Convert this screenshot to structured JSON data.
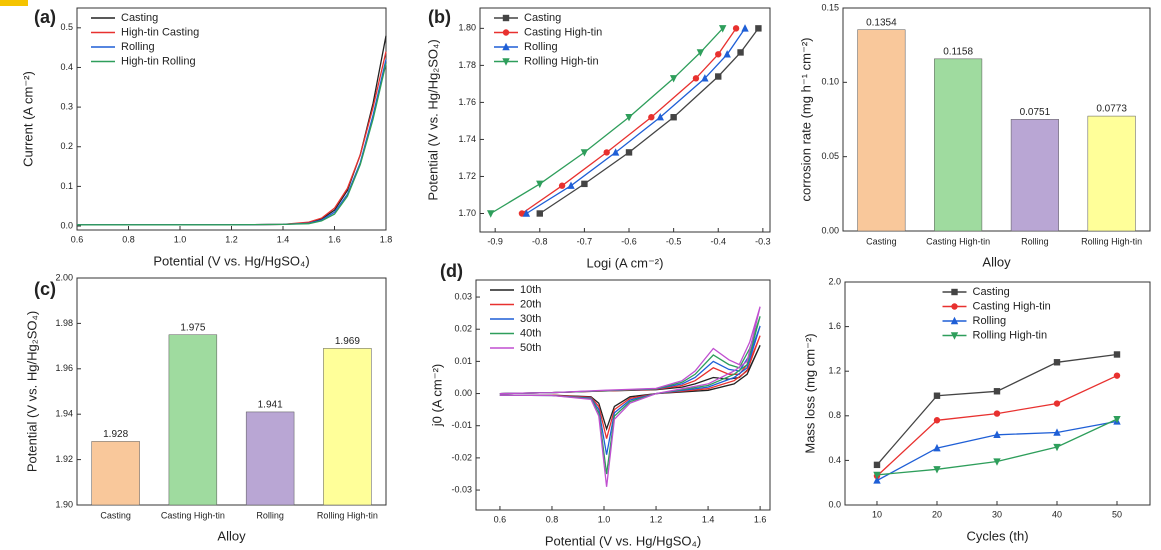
{
  "chart_data": [
    {
      "type": "line",
      "label": "(a)",
      "xlabel": "Potential (V vs. Hg/HgSO₄)",
      "ylabel": "Current (A cm⁻²)",
      "x": [
        0.6,
        0.8,
        1.0,
        1.2,
        1.4,
        1.5,
        1.55,
        1.6,
        1.65,
        1.7,
        1.75,
        1.8
      ],
      "series": [
        {
          "name": "Casting",
          "color": "#222222",
          "values": [
            0.003,
            0.003,
            0.003,
            0.003,
            0.004,
            0.008,
            0.018,
            0.04,
            0.09,
            0.18,
            0.31,
            0.48
          ]
        },
        {
          "name": "High-tin Casting",
          "color": "#e8312f",
          "values": [
            0.003,
            0.003,
            0.003,
            0.003,
            0.004,
            0.01,
            0.02,
            0.045,
            0.095,
            0.18,
            0.3,
            0.44
          ]
        },
        {
          "name": "Rolling",
          "color": "#1f5fd6",
          "values": [
            0.003,
            0.003,
            0.003,
            0.003,
            0.004,
            0.007,
            0.015,
            0.035,
            0.08,
            0.16,
            0.28,
            0.42
          ]
        },
        {
          "name": "High-tin Rolling",
          "color": "#2e9e5b",
          "values": [
            0.003,
            0.003,
            0.003,
            0.003,
            0.004,
            0.006,
            0.013,
            0.03,
            0.075,
            0.155,
            0.27,
            0.41
          ]
        }
      ],
      "xlim": [
        0.6,
        1.8
      ],
      "ylim": [
        -0.01,
        0.55
      ],
      "xticks": [
        0.6,
        0.8,
        {
          "value": 1,
          "label": "1.0"
        },
        1.2,
        1.4,
        1.6,
        1.8
      ],
      "yticks": [
        {
          "value": 0,
          "label": "0.0"
        },
        0.1,
        0.2,
        0.3,
        0.4,
        0.5
      ],
      "legend": "upper left"
    },
    {
      "type": "line",
      "label": "(b)",
      "xlabel": "Logi (A cm⁻²)",
      "ylabel": "Potential (V vs. Hg/Hg₂SO₄)",
      "series": [
        {
          "name": "Casting",
          "color": "#444444",
          "marker": "square",
          "x": [
            -0.8,
            -0.7,
            -0.6,
            -0.5,
            -0.4,
            -0.35,
            -0.31
          ],
          "values": [
            1.7,
            1.716,
            1.733,
            1.752,
            1.774,
            1.787,
            1.8
          ]
        },
        {
          "name": "Casting High-tin",
          "color": "#e8312f",
          "marker": "circle",
          "x": [
            -0.84,
            -0.75,
            -0.65,
            -0.55,
            -0.45,
            -0.4,
            -0.36
          ],
          "values": [
            1.7,
            1.715,
            1.733,
            1.752,
            1.773,
            1.786,
            1.8
          ]
        },
        {
          "name": "Rolling",
          "color": "#1f5fd6",
          "marker": "triangle-up",
          "x": [
            -0.83,
            -0.73,
            -0.63,
            -0.53,
            -0.43,
            -0.38,
            -0.34
          ],
          "values": [
            1.7,
            1.715,
            1.733,
            1.752,
            1.773,
            1.786,
            1.8
          ]
        },
        {
          "name": "Rolling High-tin",
          "color": "#2e9e5b",
          "marker": "triangle-down",
          "x": [
            -0.91,
            -0.8,
            -0.7,
            -0.6,
            -0.5,
            -0.44,
            -0.39
          ],
          "values": [
            1.7,
            1.716,
            1.733,
            1.752,
            1.773,
            1.787,
            1.8
          ]
        }
      ],
      "xlim": [
        -0.934,
        -0.284
      ],
      "ylim": [
        1.69,
        1.811
      ],
      "xticks": [
        -0.9,
        -0.8,
        -0.7,
        -0.6,
        -0.5,
        -0.4,
        -0.3
      ],
      "yticks": [
        {
          "value": 1.7,
          "label": "1.70"
        },
        1.72,
        1.74,
        1.76,
        1.78,
        {
          "value": 1.8,
          "label": "1.80"
        }
      ],
      "legend": "upper left"
    },
    {
      "type": "bar",
      "xlabel": "Alloy",
      "ylabel": "corrosion rate (mg h⁻¹ cm⁻²)",
      "categories": [
        "Casting",
        "Casting High-tin",
        "Rolling",
        "Rolling High-tin"
      ],
      "values": [
        0.1354,
        0.1158,
        0.0751,
        0.0773
      ],
      "colors": [
        "#f9c89b",
        "#9fdb9f",
        "#b9a6d4",
        "#ffff99"
      ],
      "ylim": [
        0,
        0.15
      ],
      "yticks": [
        {
          "value": 0,
          "label": "0.00"
        },
        0.05,
        {
          "value": 0.1,
          "label": "0.10"
        },
        0.15
      ]
    },
    {
      "type": "bar",
      "label": "(c)",
      "xlabel": "Alloy",
      "ylabel": "Potential (V vs. Hg/Hg₂SO₄)",
      "categories": [
        "Casting",
        "Casting High-tin",
        "Rolling",
        "Rolling High-tin"
      ],
      "values": [
        1.928,
        1.975,
        1.941,
        1.969
      ],
      "colors": [
        "#f9c89b",
        "#9fdb9f",
        "#b9a6d4",
        "#ffff99"
      ],
      "ylim": [
        1.9,
        2.0
      ],
      "yticks": [
        {
          "value": 1.9,
          "label": "1.90"
        },
        1.92,
        1.94,
        1.96,
        1.98,
        {
          "value": 2,
          "label": "2.00"
        }
      ]
    },
    {
      "type": "line",
      "label": "(d)",
      "xlabel": "Potential (V vs. Hg/HgSO₄)",
      "ylabel": "j0 (A cm⁻²)",
      "x": [
        0.6,
        0.8,
        1.0,
        1.2,
        1.3,
        1.35,
        1.42,
        1.48,
        1.52,
        1.56,
        1.6,
        1.55,
        1.5,
        1.4,
        1.2,
        1.1,
        1.04,
        1.01,
        0.98,
        0.95,
        0.8,
        0.6
      ],
      "series": [
        {
          "name": "10th",
          "color": "#222222",
          "values": [
            0,
            0.0003,
            0.0008,
            0.0012,
            0.002,
            0.003,
            0.005,
            0.0045,
            0.005,
            0.008,
            0.015,
            0.006,
            0.003,
            0.001,
            0,
            -0.001,
            -0.004,
            -0.011,
            -0.003,
            -0.001,
            -0.0005,
            -0.0005
          ]
        },
        {
          "name": "20th",
          "color": "#e8312f",
          "values": [
            0,
            0.0003,
            0.0008,
            0.0013,
            0.0025,
            0.004,
            0.008,
            0.006,
            0.006,
            0.01,
            0.018,
            0.007,
            0.004,
            0.0015,
            0,
            -0.0015,
            -0.005,
            -0.014,
            -0.004,
            -0.0012,
            -0.0005,
            -0.0005
          ]
        },
        {
          "name": "30th",
          "color": "#1f5fd6",
          "values": [
            0,
            0.0003,
            0.0009,
            0.0014,
            0.003,
            0.005,
            0.01,
            0.0075,
            0.007,
            0.012,
            0.021,
            0.008,
            0.005,
            0.002,
            0,
            -0.002,
            -0.006,
            -0.019,
            -0.005,
            -0.0014,
            -0.0006,
            -0.0005
          ]
        },
        {
          "name": "40th",
          "color": "#2e9e5b",
          "values": [
            0,
            0.0003,
            0.0009,
            0.0015,
            0.0035,
            0.006,
            0.012,
            0.009,
            0.008,
            0.014,
            0.024,
            0.009,
            0.006,
            0.0025,
            0,
            -0.0025,
            -0.007,
            -0.025,
            -0.006,
            -0.0016,
            -0.0006,
            -0.0005
          ]
        },
        {
          "name": "50th",
          "color": "#c04fd0",
          "values": [
            0,
            0.0003,
            0.001,
            0.0016,
            0.004,
            0.007,
            0.014,
            0.0105,
            0.009,
            0.016,
            0.027,
            0.01,
            0.007,
            0.003,
            0,
            -0.003,
            -0.008,
            -0.029,
            -0.007,
            -0.0018,
            -0.0006,
            -0.0005
          ]
        }
      ],
      "xlim": [
        0.508,
        1.638
      ],
      "ylim": [
        -0.0362,
        0.0353
      ],
      "xticks": [
        0.6,
        0.8,
        {
          "value": 1,
          "label": "1.0"
        },
        1.2,
        1.4,
        1.6
      ],
      "yticks": [
        -0.03,
        -0.02,
        -0.01,
        {
          "value": 0,
          "label": "0.00"
        },
        0.01,
        0.02,
        0.03
      ],
      "legend": "upper left"
    },
    {
      "type": "line",
      "xlabel": "Cycles (th)",
      "ylabel": "Mass loss (mg cm⁻²)",
      "x": [
        10,
        20,
        30,
        40,
        50
      ],
      "series": [
        {
          "name": "Casting",
          "color": "#444444",
          "marker": "square",
          "values": [
            0.36,
            0.98,
            1.02,
            1.28,
            1.35
          ]
        },
        {
          "name": "Casting High-tin",
          "color": "#e8312f",
          "marker": "circle",
          "values": [
            0.26,
            0.76,
            0.82,
            0.91,
            1.16
          ]
        },
        {
          "name": "Rolling",
          "color": "#1f5fd6",
          "marker": "triangle-up",
          "values": [
            0.22,
            0.51,
            0.63,
            0.65,
            0.75
          ]
        },
        {
          "name": "Rolling High-tin",
          "color": "#2e9e5b",
          "marker": "triangle-down",
          "values": [
            0.27,
            0.32,
            0.39,
            0.52,
            0.77
          ]
        }
      ],
      "xlim": [
        4.67,
        55.5
      ],
      "ylim": [
        0,
        2
      ],
      "xticks": [
        10,
        20,
        30,
        40,
        50
      ],
      "yticks": [
        {
          "value": 0,
          "label": "0.0"
        },
        0.4,
        0.8,
        1.2,
        1.6,
        {
          "value": 2,
          "label": "2.0"
        }
      ],
      "legend": "upper center"
    }
  ]
}
